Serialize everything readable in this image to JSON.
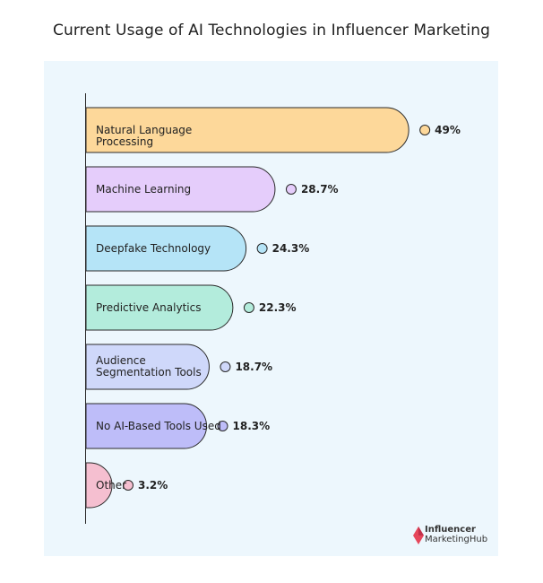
{
  "chart_data": {
    "type": "bar",
    "orientation": "horizontal",
    "title": "Current Usage of AI Technologies in Influencer Marketing",
    "categories": [
      "Natural Language Processing",
      "Machine Learning",
      "Deepfake Technology",
      "Predictive Analytics",
      "Audience Segmentation Tools",
      "No AI-Based Tools Used",
      "Other"
    ],
    "values": [
      49,
      28.7,
      24.3,
      22.3,
      18.7,
      18.3,
      3.2
    ],
    "value_labels": [
      "49%",
      "28.7%",
      "24.3%",
      "22.3%",
      "18.7%",
      "18.3%",
      "3.2%"
    ],
    "colors": [
      "#fdd89a",
      "#e5cdfb",
      "#b5e4f7",
      "#b3ecdc",
      "#cfd8fa",
      "#bebdf9",
      "#f5bfd0"
    ],
    "xlim": [
      0,
      100
    ],
    "grid": false,
    "legend": "none"
  },
  "brand": {
    "line1": "Influencer",
    "line2": "MarketingHub",
    "logo_icon": "diamond-logo-icon",
    "accent": "#e6475b"
  }
}
